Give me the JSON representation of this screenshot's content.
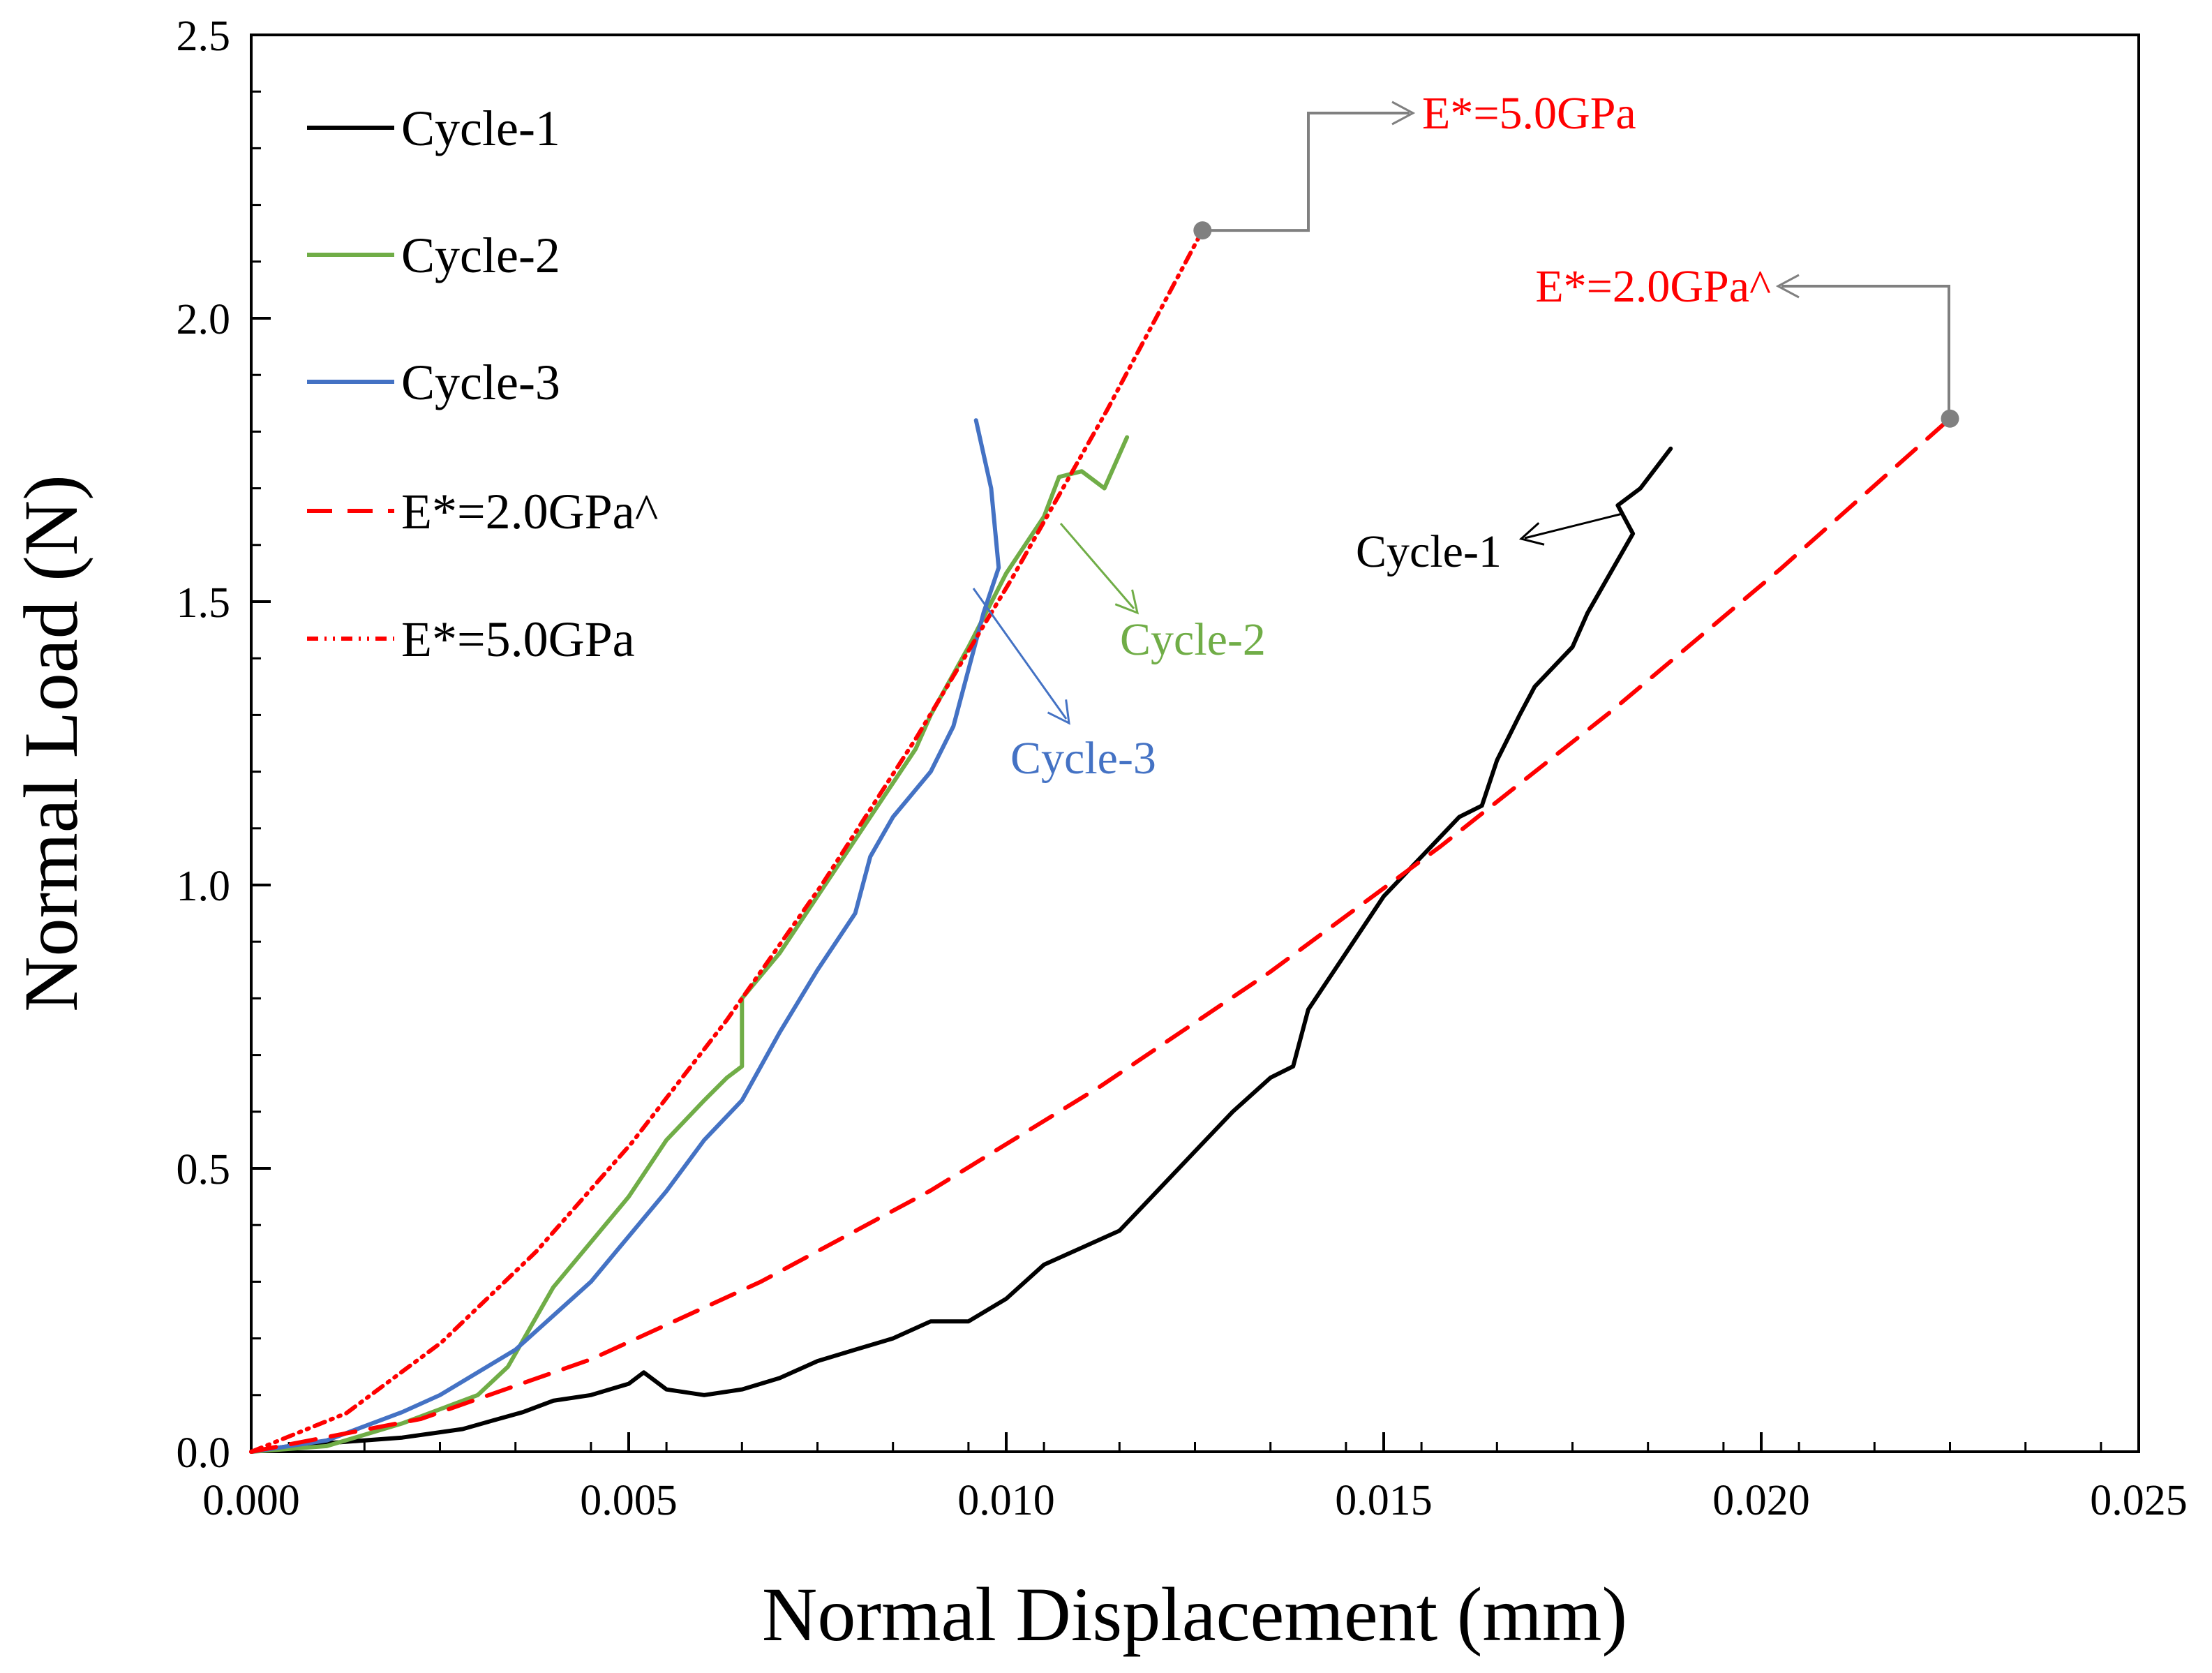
{
  "chart_data": {
    "type": "line",
    "xlabel": "Normal Displacement (mm)",
    "ylabel": "Normal Load (N)",
    "xlim": [
      0,
      0.025
    ],
    "ylim": [
      0,
      2.5
    ],
    "xticks": [
      "0.000",
      "0.005",
      "0.010",
      "0.015",
      "0.020",
      "0.025"
    ],
    "yticks": [
      "0.0",
      "0.5",
      "1.0",
      "1.5",
      "2.0",
      "2.5"
    ],
    "xtick_values": [
      0,
      0.005,
      0.01,
      0.015,
      0.02,
      0.025
    ],
    "ytick_values": [
      0,
      0.5,
      1.0,
      1.5,
      2.0,
      2.5
    ],
    "grid": false,
    "legend_position": "top-left",
    "series": [
      {
        "name": "Cycle-1",
        "color": "#000000",
        "dash": "",
        "x": [
          0,
          0.0006,
          0.001,
          0.002,
          0.0028,
          0.0032,
          0.0036,
          0.004,
          0.0045,
          0.005,
          0.0052,
          0.0055,
          0.006,
          0.0065,
          0.007,
          0.0075,
          0.008,
          0.0085,
          0.009,
          0.0095,
          0.01,
          0.0105,
          0.011,
          0.0115,
          0.012,
          0.0125,
          0.013,
          0.0135,
          0.0138,
          0.014,
          0.0145,
          0.015,
          0.0155,
          0.016,
          0.0163,
          0.0165,
          0.0168,
          0.017,
          0.0175,
          0.0177,
          0.018,
          0.0183,
          0.0181,
          0.0184,
          0.0188
        ],
        "y": [
          0,
          0.012,
          0.015,
          0.025,
          0.04,
          0.055,
          0.07,
          0.09,
          0.1,
          0.12,
          0.14,
          0.11,
          0.1,
          0.11,
          0.13,
          0.16,
          0.18,
          0.2,
          0.23,
          0.23,
          0.27,
          0.33,
          0.36,
          0.39,
          0.46,
          0.53,
          0.6,
          0.66,
          0.68,
          0.78,
          0.88,
          0.98,
          1.05,
          1.12,
          1.14,
          1.22,
          1.3,
          1.35,
          1.42,
          1.48,
          1.55,
          1.62,
          1.67,
          1.7,
          1.77
        ]
      },
      {
        "name": "Cycle-2",
        "color": "#70ad47",
        "dash": "",
        "x": [
          0,
          0.001,
          0.002,
          0.003,
          0.0034,
          0.0037,
          0.004,
          0.0045,
          0.005,
          0.0055,
          0.006,
          0.0063,
          0.0065,
          0.0065,
          0.007,
          0.0075,
          0.008,
          0.0085,
          0.0088,
          0.009,
          0.0095,
          0.01,
          0.0105,
          0.0107,
          0.011,
          0.0113,
          0.0116
        ],
        "y": [
          0,
          0.01,
          0.05,
          0.1,
          0.15,
          0.22,
          0.29,
          0.37,
          0.45,
          0.55,
          0.62,
          0.66,
          0.68,
          0.8,
          0.88,
          0.98,
          1.08,
          1.18,
          1.24,
          1.3,
          1.42,
          1.55,
          1.65,
          1.72,
          1.73,
          1.7,
          1.79
        ]
      },
      {
        "name": "Cycle-3",
        "color": "#4472c4",
        "dash": "",
        "x": [
          0,
          0.001,
          0.002,
          0.0025,
          0.003,
          0.0035,
          0.004,
          0.0045,
          0.005,
          0.0055,
          0.006,
          0.0065,
          0.007,
          0.0075,
          0.008,
          0.0082,
          0.0085,
          0.009,
          0.0093,
          0.0095,
          0.0097,
          0.0099,
          0.0098,
          0.0096
        ],
        "y": [
          0,
          0.02,
          0.07,
          0.1,
          0.14,
          0.18,
          0.24,
          0.3,
          0.38,
          0.46,
          0.55,
          0.62,
          0.74,
          0.85,
          0.95,
          1.05,
          1.12,
          1.2,
          1.28,
          1.38,
          1.48,
          1.56,
          1.7,
          1.82
        ]
      },
      {
        "name": "E*=2.0GPa^",
        "color": "#ff0000",
        "dash": "36 22",
        "x": [
          0,
          0.00225,
          0.0045,
          0.00675,
          0.009,
          0.01125,
          0.0135,
          0.01575,
          0.018,
          0.02025,
          0.0225
        ],
        "y": [
          0,
          0.058,
          0.163,
          0.3,
          0.461,
          0.645,
          0.847,
          1.068,
          1.305,
          1.557,
          1.823
        ]
      },
      {
        "name": "E*=5.0GPa",
        "color": "#ff0000",
        "dash": "16 9 3 9 3 9",
        "x": [
          0,
          0.00126,
          0.00252,
          0.00378,
          0.00504,
          0.0063,
          0.00756,
          0.00882,
          0.01008,
          0.01134,
          0.0126
        ],
        "y": [
          0,
          0.068,
          0.193,
          0.354,
          0.545,
          0.762,
          1.001,
          1.262,
          1.542,
          1.839,
          2.155
        ]
      }
    ],
    "annotations": [
      {
        "text": "Cycle-1",
        "color": "#000000"
      },
      {
        "text": "Cycle-2",
        "color": "#70ad47"
      },
      {
        "text": "Cycle-3",
        "color": "#4472c4"
      },
      {
        "text": "E*=5.0GPa",
        "color": "#ff0000",
        "marker_x": 0.0126,
        "marker_y": 2.155
      },
      {
        "text": "E*=2.0GPa^",
        "color": "#ff0000",
        "marker_x": 0.0225,
        "marker_y": 1.823
      }
    ]
  }
}
